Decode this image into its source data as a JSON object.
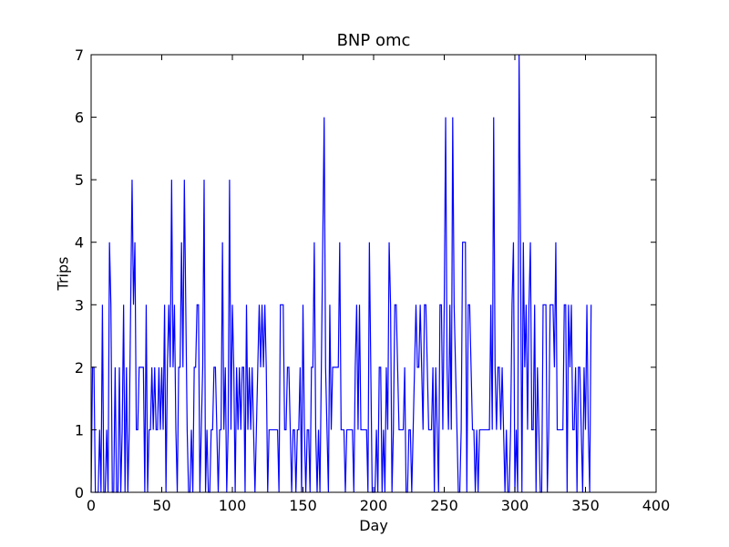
{
  "chart_data": {
    "type": "line",
    "title": "BNP omc",
    "xlabel": "Day",
    "ylabel": "Trips",
    "xlim": [
      0,
      400
    ],
    "ylim": [
      0,
      7
    ],
    "x_ticks": [
      "0",
      "50",
      "100",
      "150",
      "200",
      "250",
      "300",
      "350",
      "400"
    ],
    "y_ticks": [
      "0",
      "1",
      "2",
      "3",
      "4",
      "5",
      "6",
      "7"
    ],
    "grid": false,
    "series": [
      {
        "color": "#0000ff",
        "x_start": 0,
        "x_step": 1,
        "values": [
          0,
          2,
          2,
          0,
          0,
          0,
          1,
          0,
          3,
          0,
          0,
          1,
          0,
          4,
          3,
          0,
          0,
          2,
          0,
          0,
          2,
          0,
          1,
          3,
          0,
          2,
          0,
          1,
          3,
          5,
          3,
          4,
          1,
          1,
          2,
          2,
          2,
          2,
          0,
          3,
          0,
          1,
          1,
          2,
          1,
          2,
          1,
          1,
          2,
          1,
          2,
          1,
          3,
          0,
          2,
          3,
          2,
          5,
          2,
          3,
          1,
          0,
          2,
          2,
          4,
          2,
          5,
          3,
          1,
          0,
          0,
          1,
          0,
          2,
          2,
          3,
          3,
          0,
          1,
          2,
          5,
          0,
          1,
          0,
          0,
          1,
          1,
          2,
          2,
          1,
          0,
          1,
          1,
          4,
          1,
          2,
          0,
          1,
          5,
          1,
          3,
          2,
          0,
          2,
          1,
          2,
          1,
          2,
          2,
          0,
          3,
          1,
          2,
          1,
          2,
          1,
          0,
          1,
          2,
          3,
          2,
          3,
          2,
          3,
          2,
          0,
          1,
          1,
          1,
          1,
          1,
          1,
          1,
          0,
          3,
          3,
          3,
          1,
          1,
          2,
          2,
          1,
          0,
          1,
          1,
          0,
          1,
          1,
          2,
          0,
          3,
          1,
          0,
          1,
          1,
          0,
          2,
          2,
          4,
          1,
          0,
          1,
          0,
          2,
          4,
          6,
          2,
          1,
          0,
          3,
          1,
          2,
          2,
          2,
          2,
          2,
          4,
          1,
          1,
          1,
          0,
          1,
          1,
          1,
          1,
          1,
          0,
          2,
          3,
          1,
          3,
          1,
          1,
          1,
          1,
          1,
          0,
          4,
          2,
          0,
          0,
          0,
          1,
          0,
          2,
          2,
          0,
          1,
          0,
          2,
          1,
          4,
          3,
          0,
          1,
          3,
          3,
          2,
          1,
          1,
          1,
          1,
          2,
          0,
          0,
          1,
          1,
          0,
          1,
          2,
          3,
          2,
          2,
          3,
          2,
          1,
          3,
          3,
          2,
          1,
          1,
          1,
          2,
          0,
          2,
          1,
          0,
          3,
          3,
          1,
          3,
          6,
          2,
          1,
          3,
          1,
          6,
          3,
          2,
          1,
          0,
          0,
          1,
          4,
          4,
          4,
          0,
          3,
          3,
          2,
          1,
          1,
          0,
          1,
          0,
          1,
          1,
          1,
          1,
          1,
          1,
          1,
          1,
          3,
          1,
          6,
          2,
          1,
          2,
          2,
          1,
          2,
          1,
          0,
          1,
          0,
          0,
          1,
          3,
          4,
          0,
          1,
          0,
          7,
          4,
          0,
          4,
          2,
          3,
          1,
          3,
          4,
          1,
          1,
          3,
          0,
          2,
          1,
          0,
          0,
          3,
          3,
          3,
          0,
          1,
          3,
          3,
          3,
          2,
          4,
          1,
          1,
          1,
          1,
          1,
          3,
          3,
          0,
          3,
          2,
          3,
          1,
          1,
          2,
          0,
          2,
          2,
          1,
          0,
          2,
          1,
          3,
          1,
          0,
          3
        ]
      }
    ]
  }
}
